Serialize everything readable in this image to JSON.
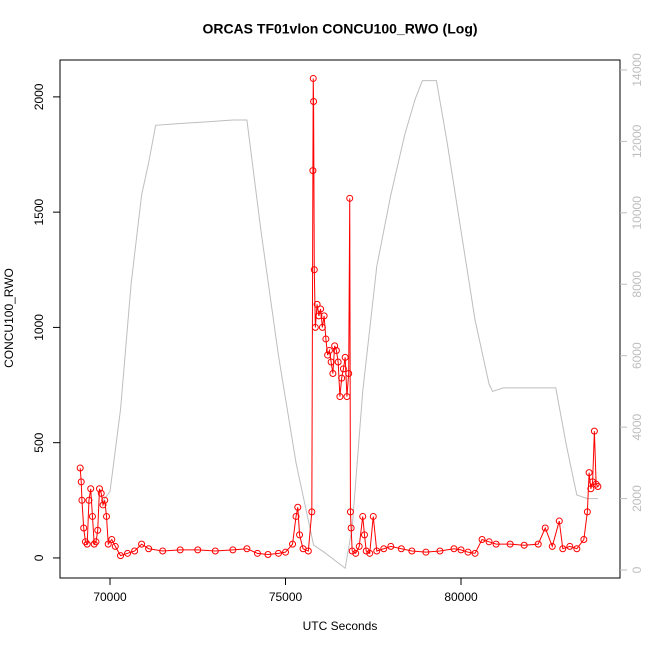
{
  "chart_data": {
    "type": "line",
    "title": "ORCAS TF01vlon CONCU100_RWO (Log)",
    "x_label": "UTC Seconds",
    "y_label": "CONCU100_RWO",
    "xlim": [
      68575,
      84530
    ],
    "xticks": [
      70000,
      75000,
      80000
    ],
    "ylim": [
      -87,
      2160
    ],
    "yticks": [
      0,
      500,
      1000,
      1500,
      2000
    ],
    "y2lim": [
      -223,
      14278
    ],
    "y2ticks": [
      0,
      2000,
      4000,
      6000,
      8000,
      10000,
      12000,
      14000
    ],
    "y2_color": "#bebebe",
    "series": [
      {
        "color": "#bebebe",
        "axis": "y2",
        "markers": false,
        "x": [
          69700,
          70000,
          70300,
          70600,
          70900,
          71100,
          71300,
          72000,
          72800,
          73500,
          73900,
          74300,
          74800,
          75300,
          75800,
          76100,
          76500,
          76700,
          76900,
          77200,
          77600,
          78000,
          78400,
          78700,
          78900,
          79300,
          79600,
          80000,
          80400,
          80800,
          80900,
          81200,
          82000,
          82700,
          83000,
          83300,
          83600,
          83900
        ],
        "values": [
          1800,
          2200,
          4500,
          8000,
          10500,
          11400,
          12450,
          12500,
          12550,
          12600,
          12600,
          9500,
          6000,
          3000,
          700,
          500,
          200,
          50,
          1200,
          5000,
          8500,
          10500,
          12200,
          13200,
          13700,
          13700,
          12000,
          9500,
          7000,
          5200,
          5000,
          5100,
          5100,
          5100,
          3500,
          2100,
          2000,
          2000
        ]
      },
      {
        "color": "#ff0000",
        "markers": true,
        "x": [
          69150,
          69180,
          69200,
          69250,
          69300,
          69350,
          69400,
          69450,
          69500,
          69550,
          69600,
          69650,
          69700,
          69750,
          69800,
          69850,
          69900,
          69950,
          70050,
          70150,
          70300,
          70500,
          70700,
          70900,
          71100,
          71500,
          72000,
          72500,
          73000,
          73500,
          73900,
          74200,
          74500,
          74800,
          75000,
          75200,
          75300,
          75350,
          75400,
          75500,
          75650,
          75750,
          75780,
          75790,
          75800,
          75820,
          75850,
          75900,
          75950,
          76000,
          76050,
          76100,
          76150,
          76200,
          76250,
          76300,
          76350,
          76400,
          76450,
          76500,
          76550,
          76600,
          76650,
          76700,
          76750,
          76800,
          76830,
          76850,
          76870,
          76900,
          77000,
          77100,
          77200,
          77250,
          77300,
          77400,
          77500,
          77600,
          77800,
          78000,
          78300,
          78600,
          79000,
          79400,
          79800,
          80000,
          80200,
          80400,
          80600,
          80800,
          81000,
          81400,
          81800,
          82200,
          82400,
          82600,
          82800,
          82900,
          83100,
          83300,
          83500,
          83600,
          83650,
          83700,
          83750,
          83800,
          83850,
          83900
        ],
        "values": [
          390,
          330,
          250,
          130,
          70,
          60,
          250,
          300,
          180,
          60,
          70,
          120,
          300,
          280,
          230,
          250,
          180,
          60,
          80,
          50,
          10,
          20,
          30,
          60,
          40,
          30,
          35,
          35,
          30,
          35,
          40,
          20,
          15,
          20,
          25,
          60,
          180,
          220,
          100,
          40,
          30,
          200,
          1680,
          2080,
          1980,
          1250,
          1000,
          1100,
          1050,
          1080,
          1000,
          1050,
          950,
          880,
          900,
          850,
          800,
          920,
          900,
          850,
          700,
          780,
          820,
          870,
          700,
          800,
          1560,
          200,
          130,
          30,
          20,
          50,
          180,
          100,
          30,
          20,
          180,
          30,
          40,
          50,
          40,
          30,
          25,
          30,
          40,
          35,
          25,
          20,
          80,
          70,
          60,
          60,
          55,
          60,
          130,
          50,
          160,
          40,
          50,
          40,
          80,
          200,
          370,
          300,
          330,
          550,
          320,
          310
        ]
      }
    ]
  }
}
